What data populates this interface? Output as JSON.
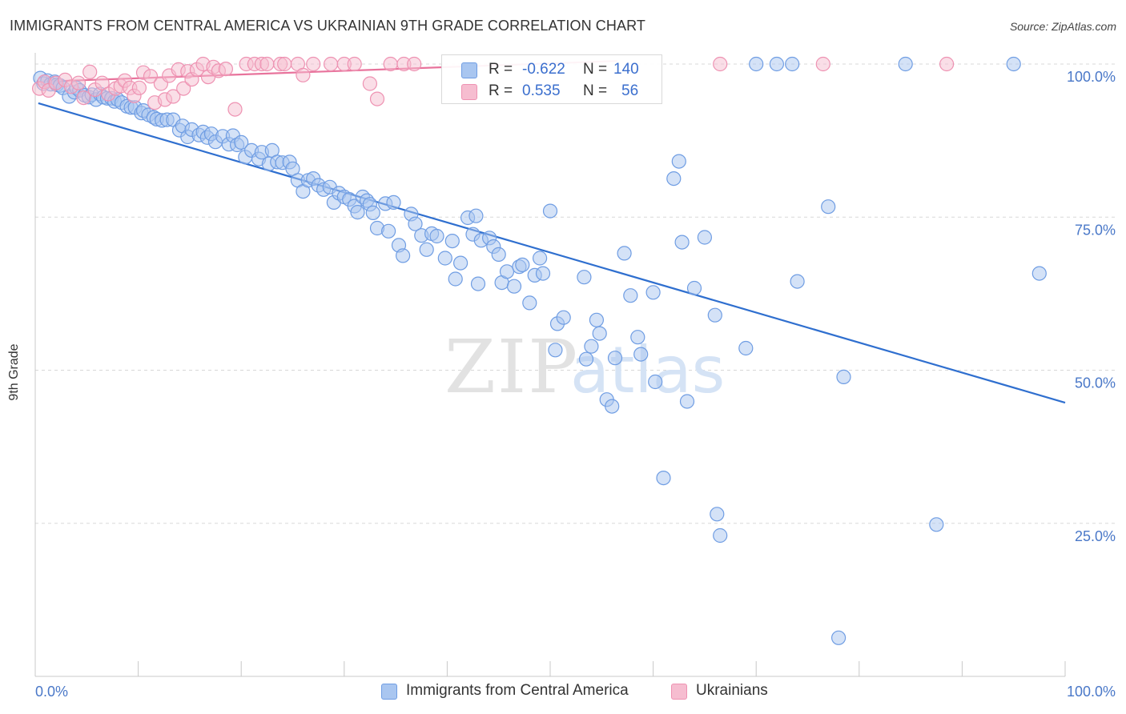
{
  "header": {
    "title": "IMMIGRANTS FROM CENTRAL AMERICA VS UKRAINIAN 9TH GRADE CORRELATION CHART",
    "source": "Source: ZipAtlas.com"
  },
  "watermark": {
    "zip": "ZIP",
    "atlas": "atlas"
  },
  "colors": {
    "blue_fill": "#a9c6f0",
    "blue_stroke": "#6f9de3",
    "blue_line": "#2f6fcf",
    "pink_fill": "#f6bdd0",
    "pink_stroke": "#ee92b2",
    "pink_line": "#e8739c",
    "axis_text": "#4a78c8",
    "grid": "#d8d8d8"
  },
  "stats": {
    "rows": [
      {
        "series": "blue",
        "r_label": "R =",
        "r_value": "-0.622",
        "n_label": "N =",
        "n_value": "140"
      },
      {
        "series": "pink",
        "r_label": "R =",
        "r_value": "0.535",
        "n_label": "N =",
        "n_value": "56"
      }
    ]
  },
  "legend": {
    "items": [
      {
        "series": "blue",
        "label": "Immigrants from Central America"
      },
      {
        "series": "pink",
        "label": "Ukrainians"
      }
    ]
  },
  "chart_data": {
    "type": "scatter",
    "title": "IMMIGRANTS FROM CENTRAL AMERICA VS UKRAINIAN 9TH GRADE CORRELATION CHART",
    "xlabel": "",
    "ylabel": "9th Grade",
    "xlim": [
      0,
      100
    ],
    "ylim": [
      0,
      100
    ],
    "x_tick_labels": [
      {
        "value": 0,
        "label": "0.0%"
      },
      {
        "value": 100,
        "label": "100.0%"
      }
    ],
    "x_minor_ticks": [
      10,
      20,
      30,
      40,
      50,
      60,
      70,
      80,
      90,
      100
    ],
    "y_ticks": [
      {
        "value": 25,
        "label": "25.0%"
      },
      {
        "value": 50,
        "label": "50.0%"
      },
      {
        "value": 75,
        "label": "75.0%"
      },
      {
        "value": 100,
        "label": "100.0%"
      }
    ],
    "legend_position": "bottom-center",
    "series": [
      {
        "name": "Immigrants from Central America",
        "color_key": "blue",
        "R": -0.622,
        "N": 140,
        "trend": {
          "x0": 0.3,
          "y0": 93.6,
          "x1": 100,
          "y1": 44.7
        },
        "points": [
          [
            0.5,
            97.7
          ],
          [
            0.8,
            96.8
          ],
          [
            1.2,
            97.3
          ],
          [
            1.5,
            96.7
          ],
          [
            1.9,
            97.1
          ],
          [
            2.1,
            96.6
          ],
          [
            2.4,
            96.5
          ],
          [
            2.7,
            96.1
          ],
          [
            3.3,
            94.7
          ],
          [
            3.8,
            95.4
          ],
          [
            4.0,
            96.1
          ],
          [
            4.3,
            95.7
          ],
          [
            4.8,
            94.9
          ],
          [
            5.2,
            94.6
          ],
          [
            5.5,
            95.0
          ],
          [
            5.9,
            94.2
          ],
          [
            6.3,
            95.1
          ],
          [
            6.6,
            94.6
          ],
          [
            7.0,
            94.4
          ],
          [
            7.4,
            94.4
          ],
          [
            7.7,
            93.9
          ],
          [
            8.0,
            94.2
          ],
          [
            8.4,
            93.7
          ],
          [
            8.9,
            93.1
          ],
          [
            9.3,
            92.9
          ],
          [
            9.7,
            92.9
          ],
          [
            10.3,
            92.0
          ],
          [
            10.5,
            92.4
          ],
          [
            11.0,
            91.7
          ],
          [
            11.5,
            91.3
          ],
          [
            11.8,
            91.0
          ],
          [
            12.3,
            90.8
          ],
          [
            12.8,
            90.9
          ],
          [
            13.4,
            90.9
          ],
          [
            14.0,
            89.2
          ],
          [
            14.3,
            89.9
          ],
          [
            14.8,
            88.1
          ],
          [
            15.2,
            89.3
          ],
          [
            15.9,
            88.4
          ],
          [
            16.3,
            88.9
          ],
          [
            16.7,
            88.0
          ],
          [
            17.1,
            88.6
          ],
          [
            17.5,
            87.3
          ],
          [
            18.2,
            88.2
          ],
          [
            18.8,
            86.9
          ],
          [
            19.2,
            88.3
          ],
          [
            19.6,
            86.8
          ],
          [
            20.0,
            87.2
          ],
          [
            20.4,
            84.8
          ],
          [
            21.0,
            85.9
          ],
          [
            21.7,
            84.5
          ],
          [
            22.0,
            85.6
          ],
          [
            22.7,
            83.7
          ],
          [
            23.0,
            85.9
          ],
          [
            23.5,
            84.0
          ],
          [
            24.0,
            83.9
          ],
          [
            24.7,
            84.0
          ],
          [
            25.0,
            82.9
          ],
          [
            25.5,
            81.0
          ],
          [
            26.0,
            79.2
          ],
          [
            26.5,
            81.0
          ],
          [
            27.0,
            81.3
          ],
          [
            27.5,
            80.2
          ],
          [
            28.0,
            79.5
          ],
          [
            28.6,
            79.9
          ],
          [
            29.0,
            77.4
          ],
          [
            29.5,
            78.9
          ],
          [
            30.0,
            78.3
          ],
          [
            30.5,
            77.9
          ],
          [
            31.0,
            76.8
          ],
          [
            31.3,
            75.8
          ],
          [
            31.8,
            78.3
          ],
          [
            32.2,
            77.7
          ],
          [
            32.5,
            77.1
          ],
          [
            33.2,
            73.2
          ],
          [
            34.0,
            77.2
          ],
          [
            34.3,
            72.7
          ],
          [
            34.8,
            77.4
          ],
          [
            35.3,
            70.4
          ],
          [
            35.7,
            68.7
          ],
          [
            36.5,
            75.5
          ],
          [
            36.9,
            73.9
          ],
          [
            37.5,
            72.0
          ],
          [
            38.0,
            69.7
          ],
          [
            38.5,
            72.3
          ],
          [
            39.0,
            71.9
          ],
          [
            39.8,
            68.3
          ],
          [
            40.5,
            71.1
          ],
          [
            40.8,
            64.9
          ],
          [
            41.3,
            67.5
          ],
          [
            42.0,
            74.9
          ],
          [
            42.5,
            72.2
          ],
          [
            42.8,
            75.2
          ],
          [
            43.0,
            64.1
          ],
          [
            43.3,
            71.2
          ],
          [
            44.1,
            71.6
          ],
          [
            44.5,
            70.2
          ],
          [
            45.0,
            68.9
          ],
          [
            45.3,
            64.3
          ],
          [
            45.8,
            66.1
          ],
          [
            46.5,
            63.7
          ],
          [
            47.0,
            66.9
          ],
          [
            47.3,
            67.2
          ],
          [
            48.0,
            61.0
          ],
          [
            48.5,
            65.5
          ],
          [
            49.0,
            68.3
          ],
          [
            49.3,
            65.8
          ],
          [
            50.0,
            76.0
          ],
          [
            50.5,
            53.3
          ],
          [
            50.7,
            57.6
          ],
          [
            51.3,
            58.6
          ],
          [
            53.3,
            65.2
          ],
          [
            53.5,
            51.8
          ],
          [
            54.0,
            53.9
          ],
          [
            54.5,
            58.2
          ],
          [
            55.5,
            45.2
          ],
          [
            56.0,
            44.1
          ],
          [
            56.3,
            52.0
          ],
          [
            57.2,
            69.1
          ],
          [
            57.8,
            62.2
          ],
          [
            58.5,
            55.4
          ],
          [
            58.8,
            52.6
          ],
          [
            60.0,
            62.7
          ],
          [
            60.2,
            48.1
          ],
          [
            61.0,
            32.4
          ],
          [
            62.0,
            81.3
          ],
          [
            62.5,
            84.1
          ],
          [
            62.8,
            70.9
          ],
          [
            63.3,
            44.9
          ],
          [
            64.0,
            63.4
          ],
          [
            65.0,
            71.7
          ],
          [
            66.0,
            59.0
          ],
          [
            66.2,
            26.5
          ],
          [
            66.5,
            23.0
          ],
          [
            69.0,
            53.6
          ],
          [
            70.0,
            100.0
          ],
          [
            72.0,
            100.0
          ],
          [
            73.5,
            100.0
          ],
          [
            74.0,
            64.5
          ],
          [
            77.0,
            76.7
          ],
          [
            78.0,
            6.3
          ],
          [
            78.5,
            48.9
          ],
          [
            84.5,
            100.0
          ],
          [
            87.5,
            24.8
          ],
          [
            95.0,
            100.0
          ],
          [
            97.5,
            65.8
          ],
          [
            54.8,
            56.0
          ],
          [
            32.8,
            75.7
          ]
        ]
      },
      {
        "name": "Ukrainians",
        "color_key": "pink",
        "R": 0.535,
        "N": 56,
        "trend": {
          "x0": 0.3,
          "y0": 97.1,
          "x1": 56.5,
          "y1": 100.5
        },
        "points": [
          [
            0.4,
            96.0
          ],
          [
            0.9,
            97.1
          ],
          [
            1.3,
            95.7
          ],
          [
            2.0,
            96.9
          ],
          [
            2.9,
            97.4
          ],
          [
            3.5,
            96.3
          ],
          [
            4.2,
            96.9
          ],
          [
            4.7,
            94.5
          ],
          [
            5.3,
            98.7
          ],
          [
            5.8,
            95.8
          ],
          [
            6.5,
            96.9
          ],
          [
            7.1,
            95.1
          ],
          [
            7.8,
            96.0
          ],
          [
            8.3,
            96.4
          ],
          [
            8.7,
            97.3
          ],
          [
            9.2,
            96.1
          ],
          [
            9.6,
            94.8
          ],
          [
            10.1,
            96.1
          ],
          [
            10.5,
            98.6
          ],
          [
            11.2,
            98.0
          ],
          [
            11.6,
            93.7
          ],
          [
            12.2,
            96.8
          ],
          [
            12.6,
            94.2
          ],
          [
            13.0,
            98.1
          ],
          [
            13.4,
            94.7
          ],
          [
            13.9,
            99.1
          ],
          [
            14.4,
            96.0
          ],
          [
            14.8,
            98.8
          ],
          [
            15.2,
            97.5
          ],
          [
            15.7,
            99.1
          ],
          [
            16.3,
            100.0
          ],
          [
            16.8,
            97.9
          ],
          [
            17.3,
            99.5
          ],
          [
            17.8,
            98.9
          ],
          [
            18.5,
            99.2
          ],
          [
            19.4,
            92.6
          ],
          [
            20.5,
            100.0
          ],
          [
            21.3,
            100.0
          ],
          [
            22.0,
            100.0
          ],
          [
            22.5,
            100.0
          ],
          [
            23.8,
            100.0
          ],
          [
            24.2,
            100.0
          ],
          [
            25.5,
            100.0
          ],
          [
            26.0,
            98.2
          ],
          [
            27.0,
            100.0
          ],
          [
            28.7,
            100.0
          ],
          [
            30.0,
            100.0
          ],
          [
            31.0,
            100.0
          ],
          [
            32.5,
            96.8
          ],
          [
            33.2,
            94.3
          ],
          [
            34.5,
            100.0
          ],
          [
            35.8,
            100.0
          ],
          [
            36.8,
            100.0
          ],
          [
            66.5,
            100.0
          ],
          [
            76.5,
            100.0
          ],
          [
            88.5,
            100.0
          ]
        ]
      }
    ]
  }
}
